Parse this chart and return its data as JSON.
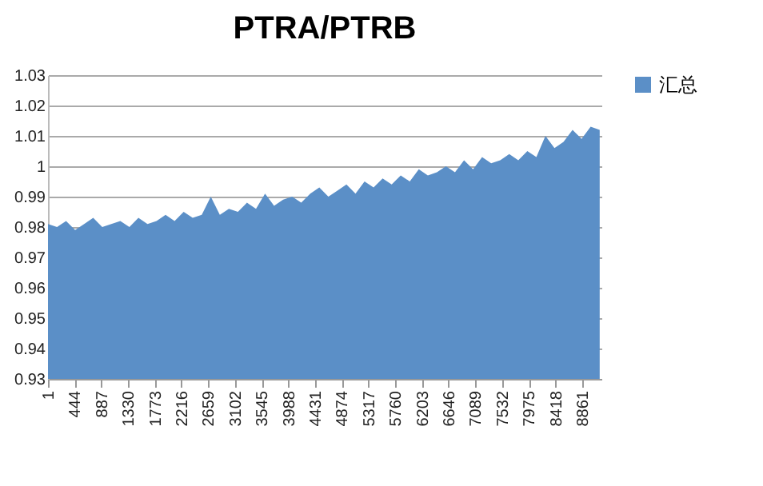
{
  "chart_data": {
    "type": "area",
    "title": "PTRA/PTRB",
    "x": [
      1,
      151,
      301,
      451,
      601,
      751,
      901,
      1051,
      1201,
      1351,
      1501,
      1651,
      1801,
      1951,
      2101,
      2251,
      2401,
      2551,
      2701,
      2851,
      3001,
      3151,
      3301,
      3451,
      3601,
      3751,
      3901,
      4051,
      4201,
      4351,
      4501,
      4651,
      4801,
      4951,
      5101,
      5251,
      5401,
      5551,
      5701,
      5851,
      6001,
      6151,
      6301,
      6451,
      6601,
      6751,
      6901,
      7051,
      7201,
      7351,
      7501,
      7651,
      7801,
      7951,
      8101,
      8251,
      8401,
      8551,
      8701,
      8851,
      9001,
      9151
    ],
    "series": [
      {
        "name": "汇总",
        "color": "#5b8fc7",
        "values": [
          0.981,
          0.98,
          0.982,
          0.979,
          0.981,
          0.983,
          0.98,
          0.981,
          0.982,
          0.98,
          0.983,
          0.981,
          0.982,
          0.984,
          0.982,
          0.985,
          0.983,
          0.984,
          0.99,
          0.984,
          0.986,
          0.985,
          0.988,
          0.986,
          0.991,
          0.987,
          0.989,
          0.99,
          0.988,
          0.991,
          0.993,
          0.99,
          0.992,
          0.994,
          0.991,
          0.995,
          0.993,
          0.996,
          0.994,
          0.997,
          0.995,
          0.999,
          0.997,
          0.998,
          1.0,
          0.998,
          1.002,
          0.999,
          1.003,
          1.001,
          1.002,
          1.004,
          1.002,
          1.005,
          1.003,
          1.01,
          1.006,
          1.008,
          1.012,
          1.009,
          1.013,
          1.012
        ]
      }
    ],
    "xlim": [
      1,
      9180
    ],
    "xticks": [
      1,
      444,
      887,
      1330,
      1773,
      2216,
      2659,
      3102,
      3545,
      3988,
      4431,
      4874,
      5317,
      5760,
      6203,
      6646,
      7089,
      7532,
      7975,
      8418,
      8861
    ],
    "ylim": [
      0.93,
      1.03
    ],
    "yticks": [
      0.93,
      0.94,
      0.95,
      0.96,
      0.97,
      0.98,
      0.99,
      1,
      1.01,
      1.02,
      1.03
    ],
    "grid": "y",
    "legend": "right"
  }
}
